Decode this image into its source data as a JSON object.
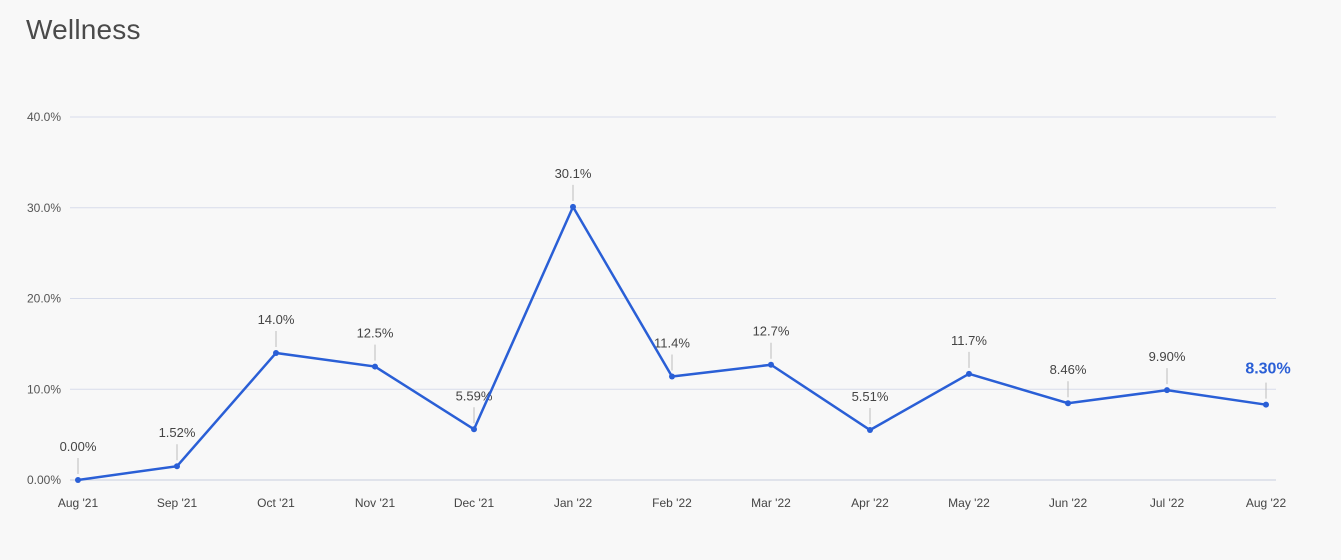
{
  "title": "Wellness",
  "colors": {
    "line": "#2a5fd6",
    "grid": "#d7dceb",
    "leader": "#bbbbbb",
    "background": "#f8f8f8"
  },
  "chart_data": {
    "type": "line",
    "title": "Wellness",
    "xlabel": "",
    "ylabel": "",
    "categories": [
      "Aug '21",
      "Sep '21",
      "Oct '21",
      "Nov '21",
      "Dec '21",
      "Jan '22",
      "Feb '22",
      "Mar '22",
      "Apr '22",
      "May '22",
      "Jun '22",
      "Jul '22",
      "Aug '22"
    ],
    "series": [
      {
        "values": [
          0.0,
          1.52,
          14.0,
          12.5,
          5.59,
          30.1,
          11.4,
          12.7,
          5.51,
          11.7,
          8.46,
          9.9,
          8.3
        ],
        "data_labels": [
          "0.00%",
          "1.52%",
          "14.0%",
          "12.5%",
          "5.59%",
          "30.1%",
          "11.4%",
          "12.7%",
          "5.51%",
          "11.7%",
          "8.46%",
          "9.90%",
          "8.30%"
        ]
      }
    ],
    "y_ticks": [
      0,
      10,
      20,
      30,
      40
    ],
    "y_tick_labels": [
      "0.00%",
      "10.0%",
      "20.0%",
      "30.0%",
      "40.0%"
    ],
    "ylim": [
      0,
      40
    ],
    "grid": true,
    "legend": "none"
  }
}
